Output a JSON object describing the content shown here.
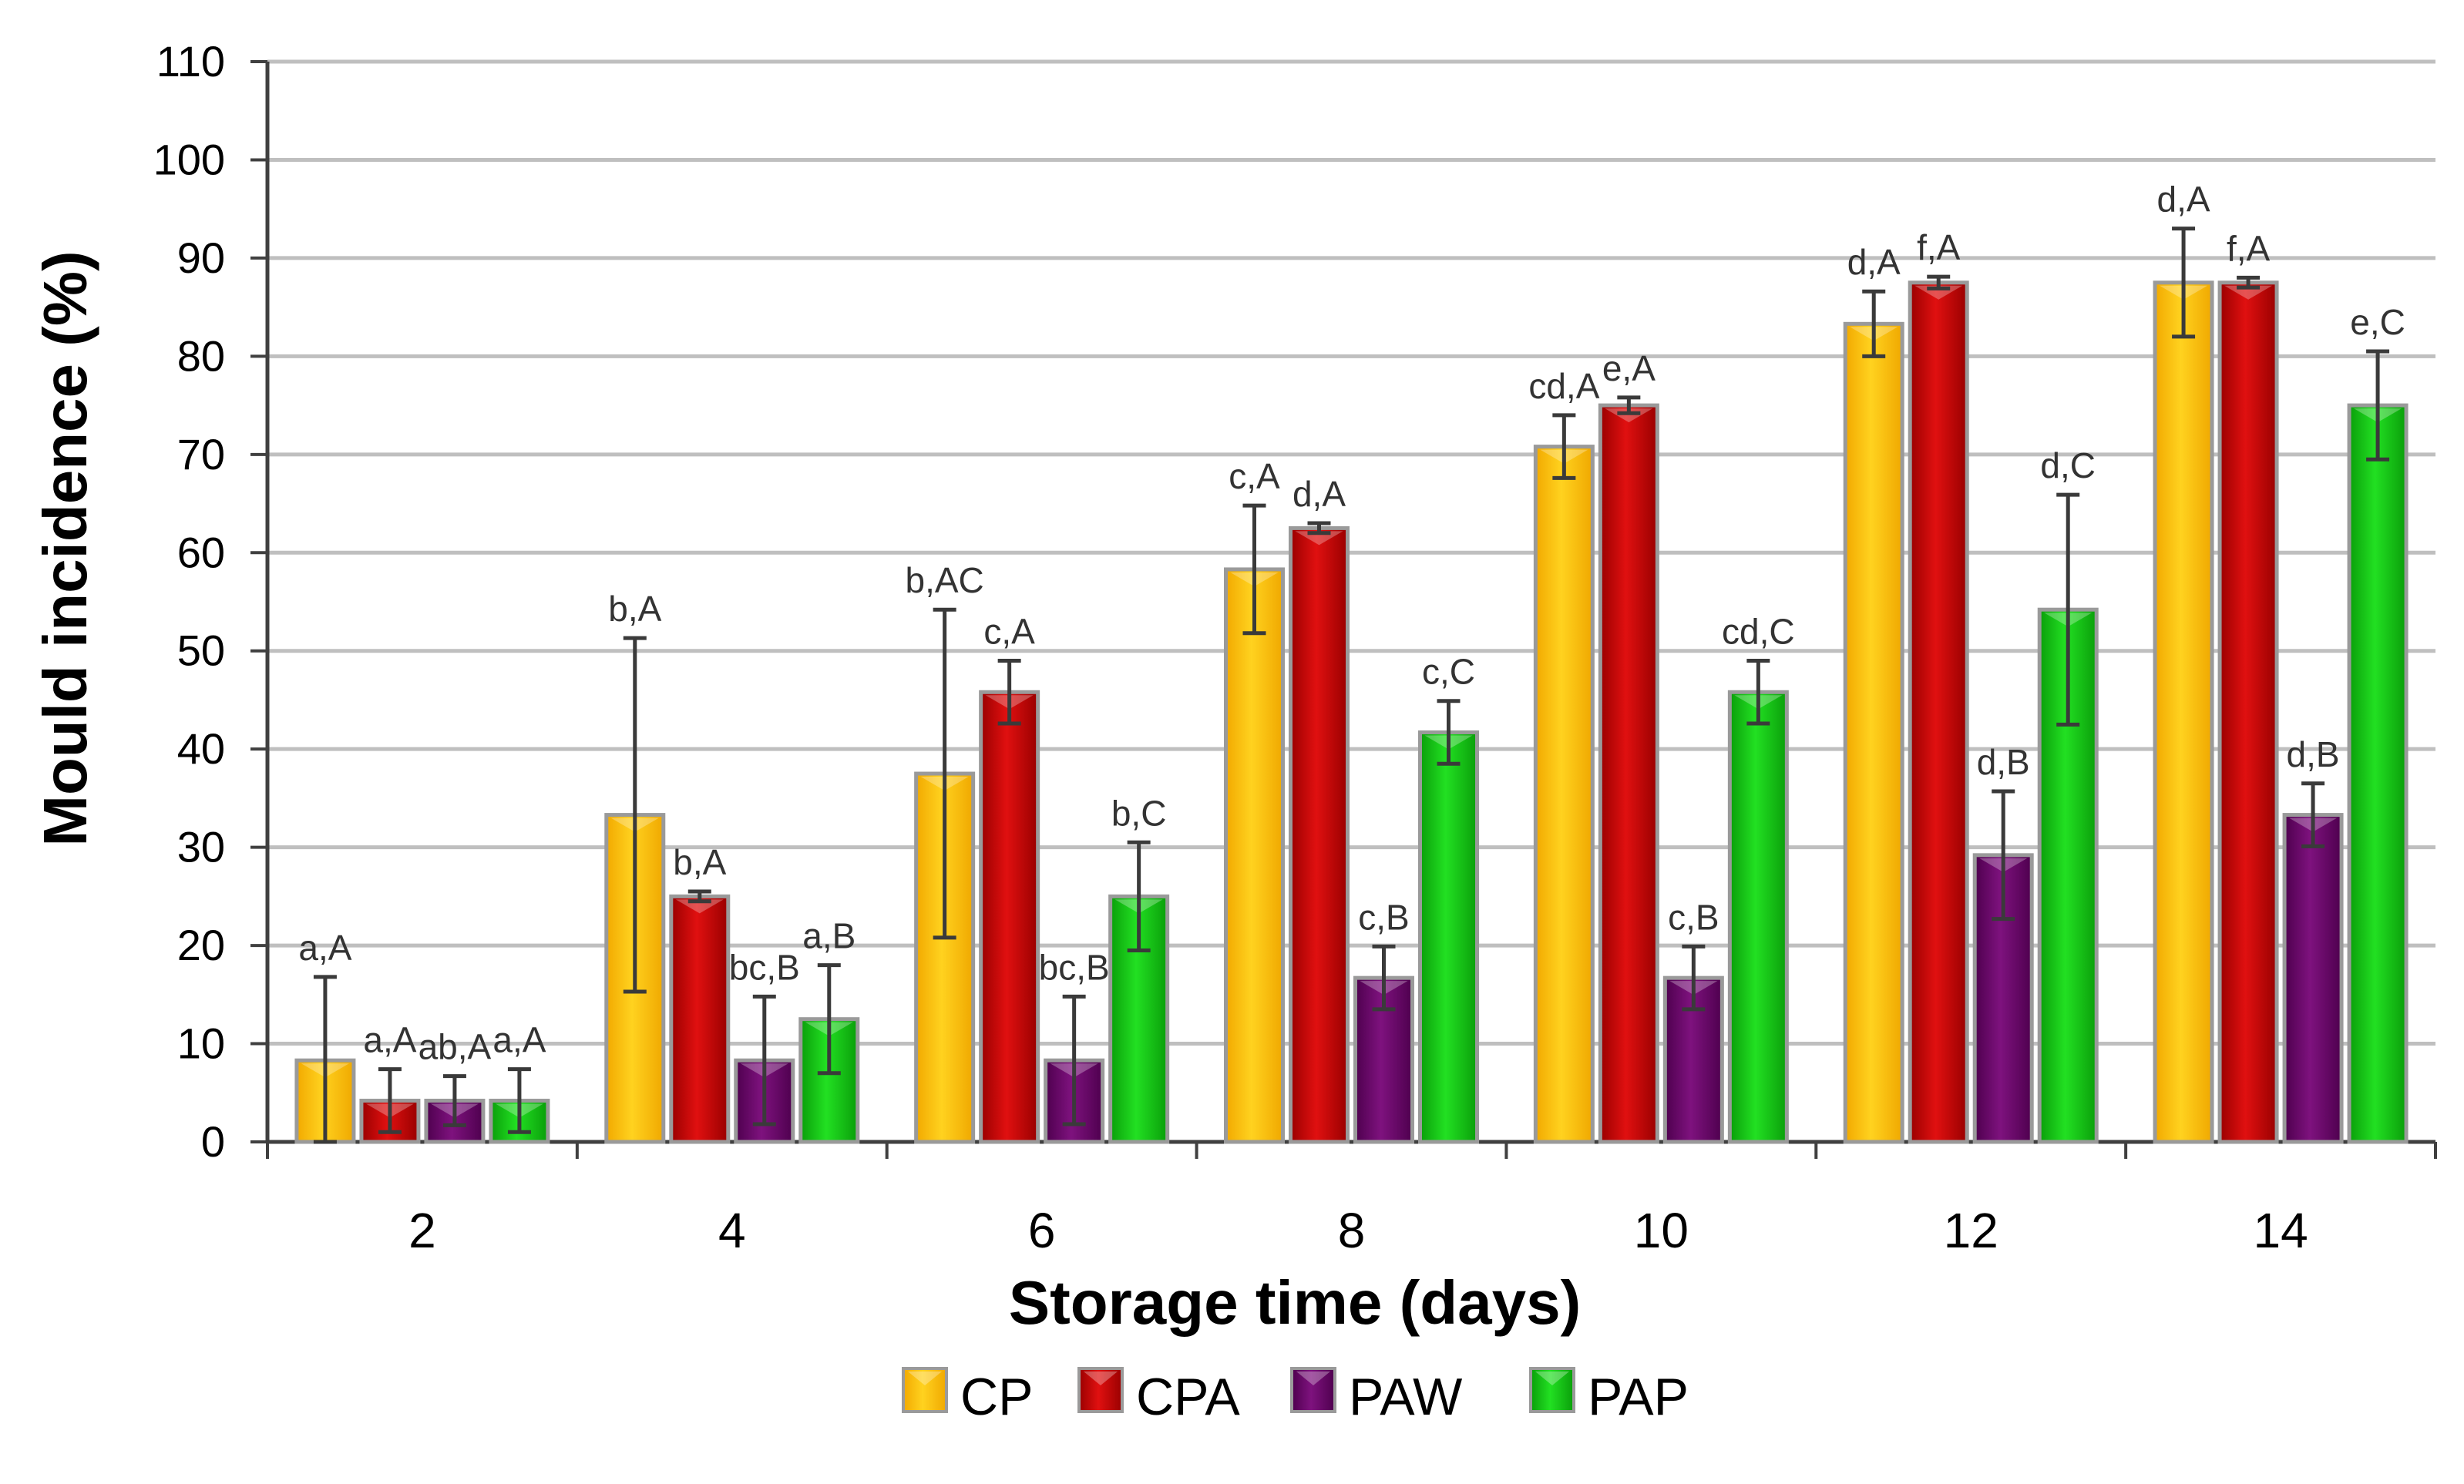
{
  "chart_data": {
    "type": "bar",
    "title": "",
    "xlabel": "Storage time (days)",
    "ylabel": "Mould incidence (%)",
    "ylim": [
      0,
      110
    ],
    "yticks": [
      "0",
      "10",
      "20",
      "30",
      "40",
      "50",
      "60",
      "70",
      "80",
      "90",
      "100",
      "110"
    ],
    "grid": true,
    "legend_position": "bottom",
    "categories": [
      "2",
      "4",
      "6",
      "8",
      "10",
      "12",
      "14"
    ],
    "series": [
      {
        "name": "CP",
        "color": "#FFC000",
        "values": [
          8.3,
          33.3,
          37.5,
          58.3,
          70.8,
          83.3,
          87.5
        ],
        "errors": [
          8.5,
          18,
          16.7,
          6.5,
          3.2,
          3.3,
          5.5
        ],
        "labels": [
          "a,A",
          "b,A",
          "b,AC",
          "c,A",
          "cd,A",
          "d,A",
          "d,A"
        ]
      },
      {
        "name": "CPA",
        "color": "#C00000",
        "values": [
          4.2,
          25,
          45.8,
          62.5,
          75,
          87.5,
          87.5
        ],
        "errors": [
          3.2,
          0.5,
          3.2,
          0.5,
          0.8,
          0.6,
          0.5
        ],
        "labels": [
          "a,A",
          "b,A",
          "c,A",
          "d,A",
          "e,A",
          "f,A",
          "f,A"
        ]
      },
      {
        "name": "PAW",
        "color": "#6A0A6A",
        "values": [
          4.2,
          8.3,
          8.3,
          16.7,
          16.7,
          29.2,
          33.3
        ],
        "errors": [
          2.5,
          6.5,
          6.5,
          3.2,
          3.2,
          6.5,
          3.2
        ],
        "labels": [
          "ab,A",
          "bc,B",
          "bc,B",
          "c,B",
          "c,B",
          "d,B",
          "d,B"
        ]
      },
      {
        "name": "PAP",
        "color": "#11CC11",
        "values": [
          4.2,
          12.5,
          25,
          41.7,
          45.8,
          54.2,
          75
        ],
        "errors": [
          3.2,
          5.5,
          5.5,
          3.2,
          3.2,
          11.7,
          5.5
        ],
        "labels": [
          "a,A",
          "a,B",
          "b,C",
          "c,C",
          "cd,C",
          "d,C",
          "e,C"
        ]
      }
    ]
  }
}
